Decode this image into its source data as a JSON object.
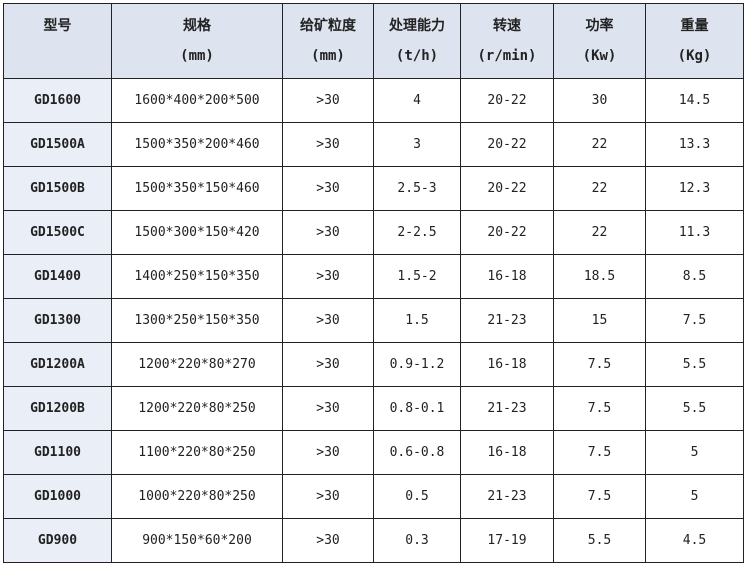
{
  "headers": [
    {
      "title": "型号",
      "unit": ""
    },
    {
      "title": "规格",
      "unit": "(mm)"
    },
    {
      "title": "给矿粒度",
      "unit": "(mm)"
    },
    {
      "title": "处理能力",
      "unit": "(t/h)"
    },
    {
      "title": "转速",
      "unit": "(r/min)"
    },
    {
      "title": "功率",
      "unit": "(Kw)"
    },
    {
      "title": "重量",
      "unit": "(Kg)"
    }
  ],
  "rows": [
    [
      "GD1600",
      "1600*400*200*500",
      ">30",
      "4",
      "20-22",
      "30",
      "14.5"
    ],
    [
      "GD1500A",
      "1500*350*200*460",
      ">30",
      "3",
      "20-22",
      "22",
      "13.3"
    ],
    [
      "GD1500B",
      "1500*350*150*460",
      ">30",
      "2.5-3",
      "20-22",
      "22",
      "12.3"
    ],
    [
      "GD1500C",
      "1500*300*150*420",
      ">30",
      "2-2.5",
      "20-22",
      "22",
      "11.3"
    ],
    [
      "GD1400",
      "1400*250*150*350",
      ">30",
      "1.5-2",
      "16-18",
      "18.5",
      "8.5"
    ],
    [
      "GD1300",
      "1300*250*150*350",
      ">30",
      "1.5",
      "21-23",
      "15",
      "7.5"
    ],
    [
      "GD1200A",
      "1200*220*80*270",
      ">30",
      "0.9-1.2",
      "16-18",
      "7.5",
      "5.5"
    ],
    [
      "GD1200B",
      "1200*220*80*250",
      ">30",
      "0.8-0.1",
      "21-23",
      "7.5",
      "5.5"
    ],
    [
      "GD1100",
      "1100*220*80*250",
      ">30",
      "0.6-0.8",
      "16-18",
      "7.5",
      "5"
    ],
    [
      "GD1000",
      "1000*220*80*250",
      ">30",
      "0.5",
      "21-23",
      "7.5",
      "5"
    ],
    [
      "GD900",
      "900*150*60*200",
      ">30",
      "0.3",
      "17-19",
      "5.5",
      "4.5"
    ]
  ]
}
